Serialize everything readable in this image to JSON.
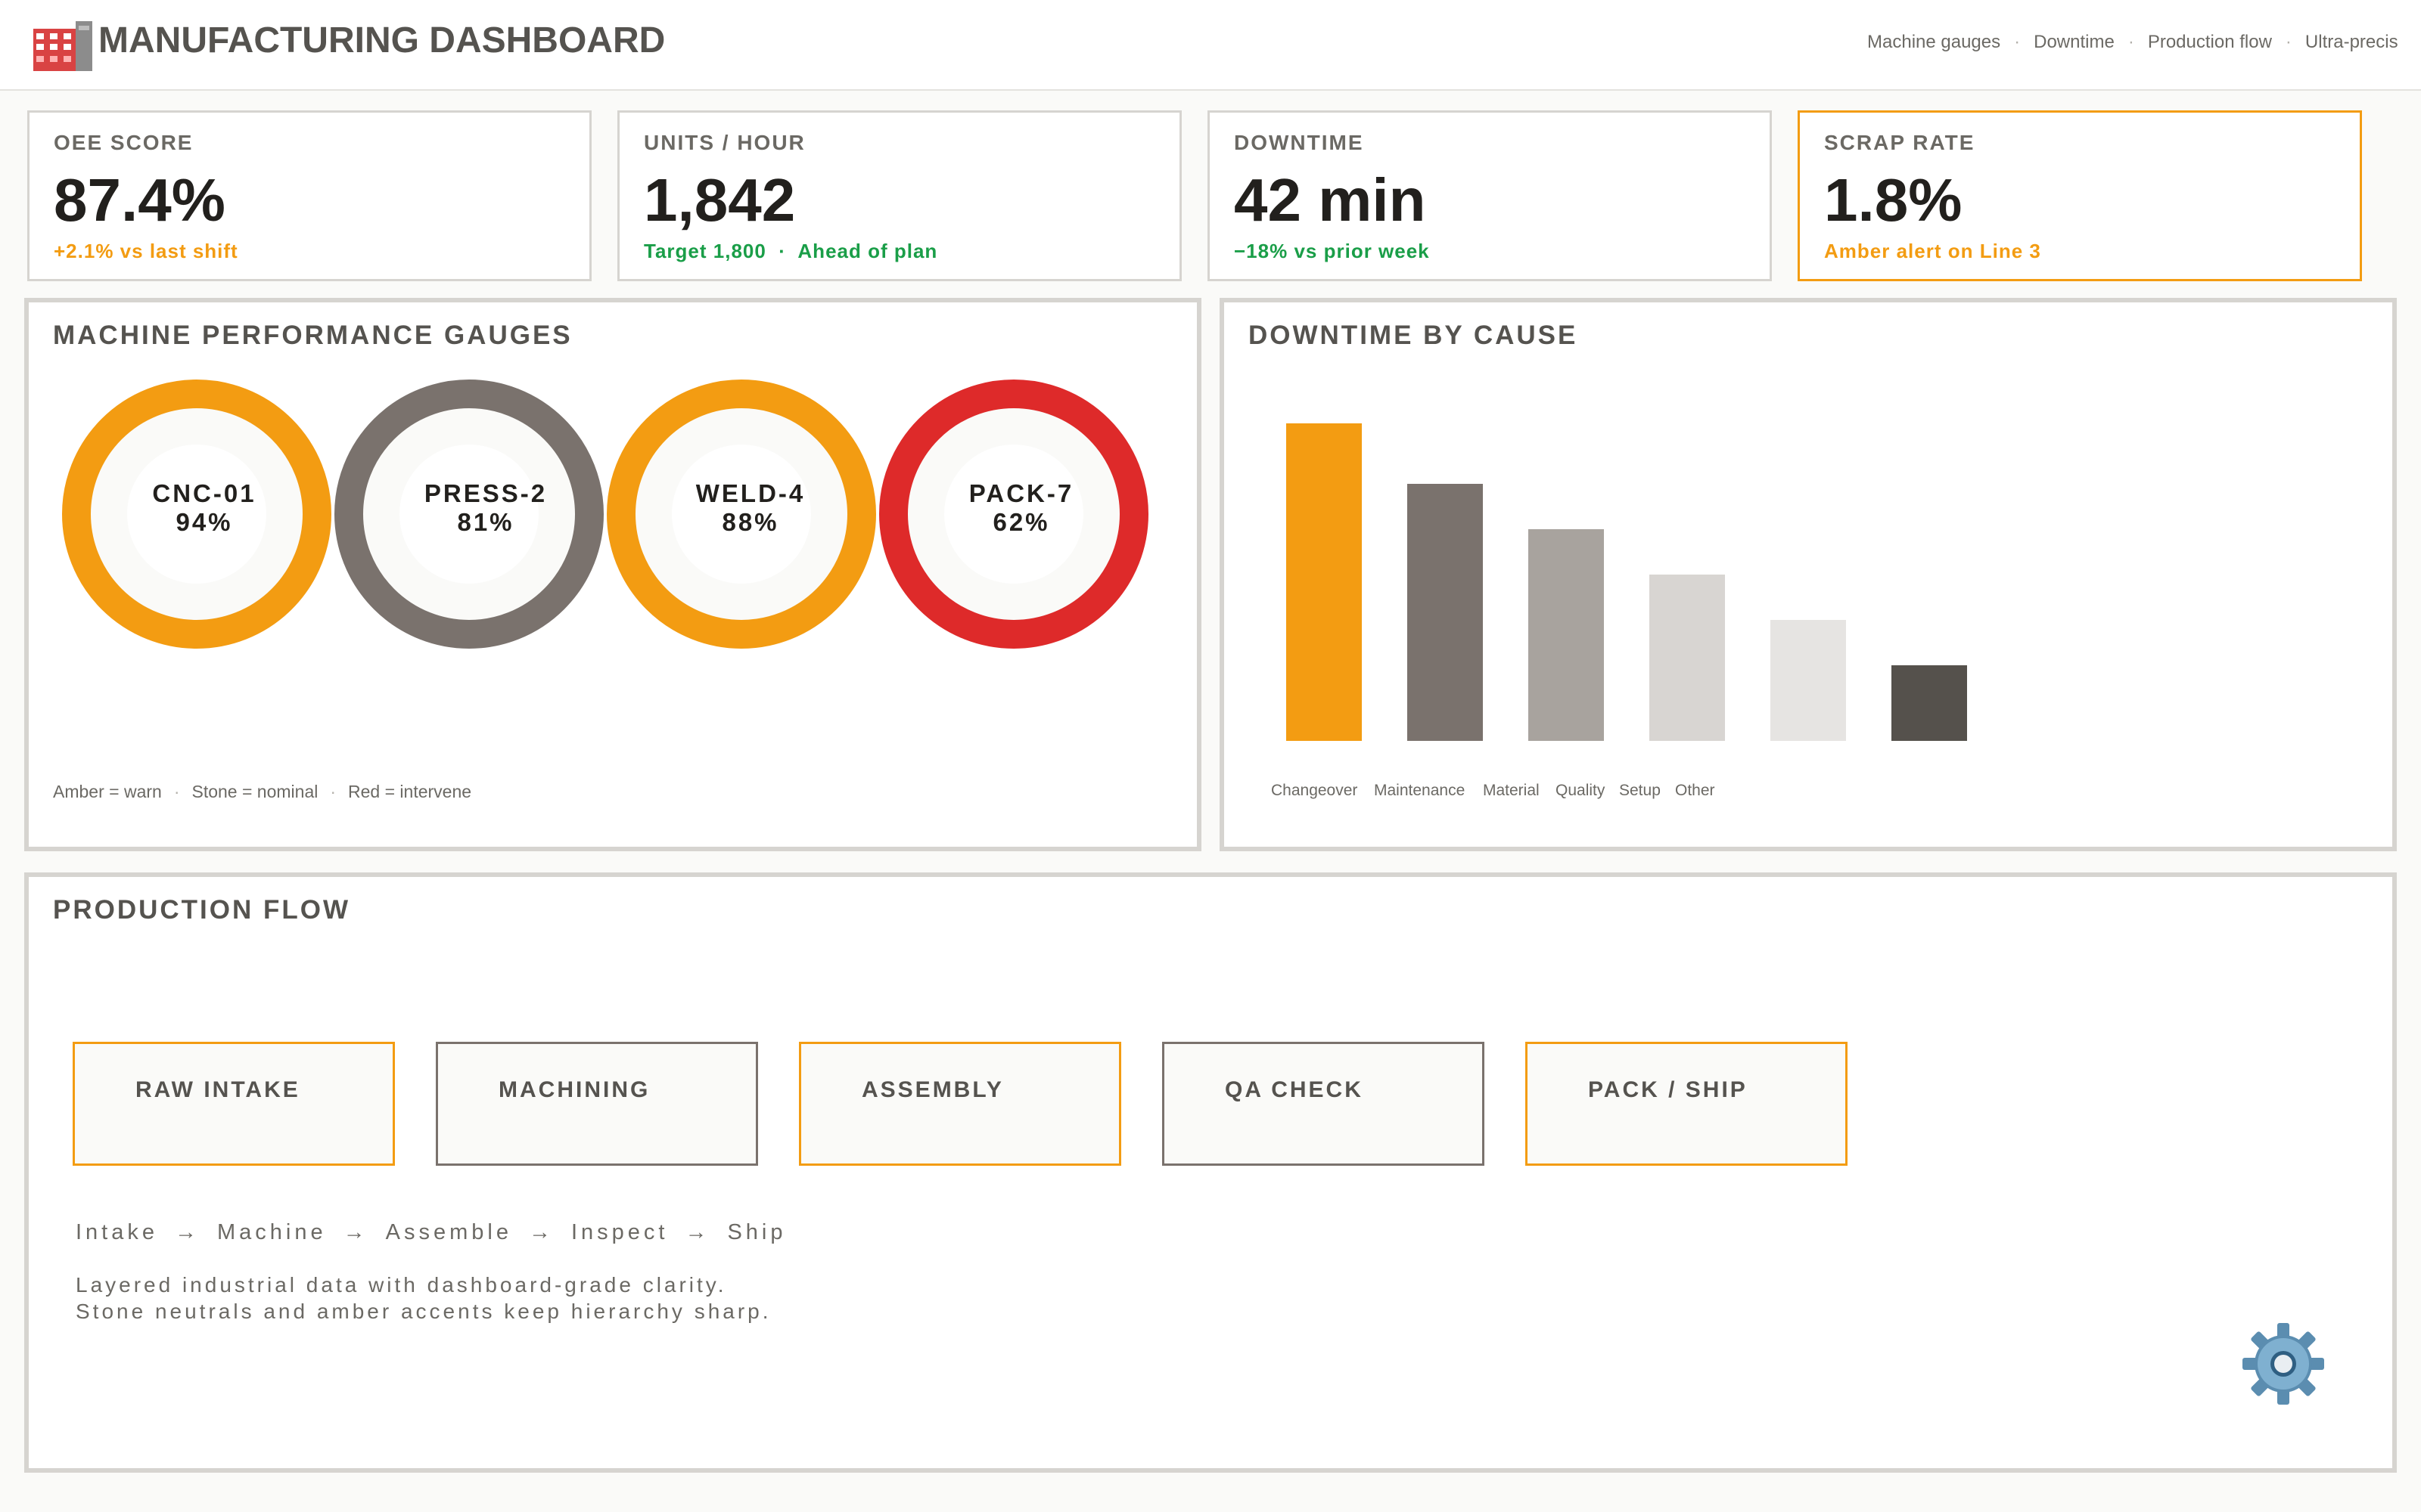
{
  "header": {
    "title": "MANUFACTURING DASHBOARD",
    "icon": "factory-icon",
    "nav": [
      "Machine gauges",
      "Downtime",
      "Production flow",
      "Ultra-precis"
    ]
  },
  "kpis": [
    {
      "label": "OEE SCORE",
      "value": "87.4%",
      "note": "+2.1% vs last shift",
      "note_color": "#f39c12"
    },
    {
      "label": "UNITS / HOUR",
      "value": "1,842",
      "note": "Target 1,800  ·  Ahead of plan",
      "note_color": "#1a9e48"
    },
    {
      "label": "DOWNTIME",
      "value": "42 min",
      "note": "−18% vs prior week",
      "note_color": "#1a9e48"
    },
    {
      "label": "SCRAP RATE",
      "value": "1.8%",
      "note": "Amber alert on Line 3",
      "note_color": "#f39c12"
    }
  ],
  "gauges": {
    "title": "MACHINE PERFORMANCE GAUGES",
    "items": [
      {
        "name": "CNC-01",
        "value": "94%",
        "color": "#f39c12"
      },
      {
        "name": "PRESS-2",
        "value": "81%",
        "color": "#7a726d"
      },
      {
        "name": "WELD-4",
        "value": "88%",
        "color": "#f39c12"
      },
      {
        "name": "PACK-7",
        "value": "62%",
        "color": "#de2a2a"
      }
    ],
    "legend": [
      "Amber = warn",
      "Stone = nominal",
      "Red = intervene"
    ]
  },
  "downtime": {
    "title": "DOWNTIME BY CAUSE"
  },
  "chart_data": {
    "type": "bar",
    "categories": [
      "Changeover",
      "Maintenance",
      "Material",
      "Quality",
      "Setup",
      "Other"
    ],
    "values": [
      42,
      34,
      28,
      22,
      16,
      10
    ],
    "colors": [
      "#f39c12",
      "#7a726d",
      "#a8a39e",
      "#d8d5d2",
      "#e6e4e2",
      "#55514c"
    ],
    "title": "DOWNTIME BY CAUSE",
    "xlabel": "",
    "ylabel": "",
    "ylim": [
      0,
      42
    ],
    "grid": false
  },
  "flow": {
    "title": "PRODUCTION FLOW",
    "stages": [
      {
        "label": "RAW INTAKE",
        "accent": "amber"
      },
      {
        "label": "MACHINING",
        "accent": "stone"
      },
      {
        "label": "ASSEMBLY",
        "accent": "amber"
      },
      {
        "label": "QA CHECK",
        "accent": "stone"
      },
      {
        "label": "PACK / SHIP",
        "accent": "amber"
      }
    ],
    "steps": [
      "Intake",
      "Machine",
      "Assemble",
      "Inspect",
      "Ship"
    ],
    "arrow": "→",
    "description": [
      "Layered industrial data with dashboard-grade clarity.",
      "Stone neutrals and amber accents keep hierarchy sharp."
    ],
    "icon": "gear-icon"
  }
}
